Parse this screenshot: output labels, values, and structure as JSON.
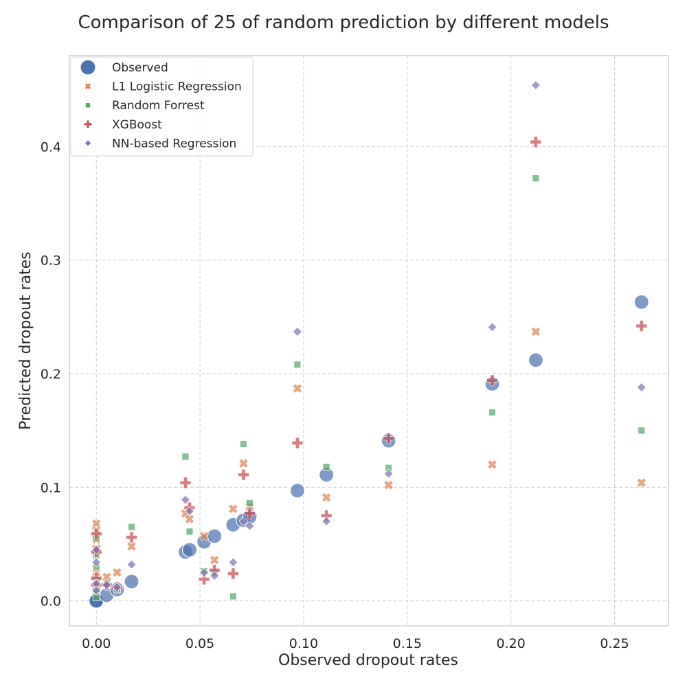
{
  "chart_data": {
    "type": "scatter",
    "title": "Comparison of 25 of random prediction by different models",
    "xlabel": "Observed dropout rates",
    "ylabel": "Predicted dropout rates",
    "xlim": [
      -0.013,
      0.276
    ],
    "ylim": [
      -0.022,
      0.48
    ],
    "xticks": [
      0.0,
      0.05,
      0.1,
      0.15,
      0.2,
      0.25
    ],
    "xtick_labels": [
      "0.00",
      "0.05",
      "0.10",
      "0.15",
      "0.20",
      "0.25"
    ],
    "yticks": [
      0.0,
      0.1,
      0.2,
      0.3,
      0.4
    ],
    "ytick_labels": [
      "0.0",
      "0.1",
      "0.2",
      "0.3",
      "0.4"
    ],
    "grid": true,
    "legend_position": "top-left",
    "series": [
      {
        "name": "Observed",
        "marker": "circle",
        "color": "#4c72b0",
        "points": [
          [
            0.0,
            0.0
          ],
          [
            0.0,
            0.0
          ],
          [
            0.0,
            0.0
          ],
          [
            0.0,
            0.0
          ],
          [
            0.0,
            0.0
          ],
          [
            0.0,
            0.0
          ],
          [
            0.0,
            0.0
          ],
          [
            0.0,
            0.0
          ],
          [
            0.005,
            0.005
          ],
          [
            0.01,
            0.01
          ],
          [
            0.017,
            0.017
          ],
          [
            0.043,
            0.043
          ],
          [
            0.045,
            0.045
          ],
          [
            0.052,
            0.052
          ],
          [
            0.057,
            0.057
          ],
          [
            0.066,
            0.067
          ],
          [
            0.071,
            0.071
          ],
          [
            0.074,
            0.074
          ],
          [
            0.097,
            0.097
          ],
          [
            0.111,
            0.111
          ],
          [
            0.141,
            0.141
          ],
          [
            0.191,
            0.191
          ],
          [
            0.212,
            0.212
          ],
          [
            0.263,
            0.263
          ]
        ]
      },
      {
        "name": "L1 Logistic Regression",
        "marker": "x",
        "color": "#dd8452",
        "points": [
          [
            0.0,
            0.068
          ],
          [
            0.0,
            0.062
          ],
          [
            0.0,
            0.054
          ],
          [
            0.0,
            0.046
          ],
          [
            0.0,
            0.025
          ],
          [
            0.0,
            0.018
          ],
          [
            0.0,
            0.013
          ],
          [
            0.0,
            0.008
          ],
          [
            0.005,
            0.021
          ],
          [
            0.01,
            0.025
          ],
          [
            0.017,
            0.048
          ],
          [
            0.043,
            0.077
          ],
          [
            0.045,
            0.072
          ],
          [
            0.052,
            0.057
          ],
          [
            0.057,
            0.036
          ],
          [
            0.066,
            0.081
          ],
          [
            0.071,
            0.121
          ],
          [
            0.074,
            0.083
          ],
          [
            0.097,
            0.187
          ],
          [
            0.111,
            0.091
          ],
          [
            0.141,
            0.102
          ],
          [
            0.191,
            0.12
          ],
          [
            0.212,
            0.237
          ],
          [
            0.263,
            0.104
          ]
        ]
      },
      {
        "name": "Random Forrest",
        "marker": "square",
        "color": "#55a868",
        "points": [
          [
            0.0,
            0.055
          ],
          [
            0.0,
            0.04
          ],
          [
            0.0,
            0.03
          ],
          [
            0.0,
            0.018
          ],
          [
            0.0,
            0.01
          ],
          [
            0.0,
            0.003
          ],
          [
            0.005,
            0.015
          ],
          [
            0.01,
            0.01
          ],
          [
            0.017,
            0.065
          ],
          [
            0.043,
            0.127
          ],
          [
            0.045,
            0.061
          ],
          [
            0.052,
            0.026
          ],
          [
            0.057,
            0.025
          ],
          [
            0.066,
            0.004
          ],
          [
            0.071,
            0.138
          ],
          [
            0.074,
            0.086
          ],
          [
            0.097,
            0.208
          ],
          [
            0.111,
            0.118
          ],
          [
            0.141,
            0.117
          ],
          [
            0.191,
            0.166
          ],
          [
            0.212,
            0.372
          ],
          [
            0.263,
            0.15
          ]
        ]
      },
      {
        "name": "XGBoost",
        "marker": "plus",
        "color": "#c44e52",
        "points": [
          [
            0.0,
            0.059
          ],
          [
            0.0,
            0.043
          ],
          [
            0.0,
            0.02
          ],
          [
            0.0,
            0.014
          ],
          [
            0.005,
            0.014
          ],
          [
            0.01,
            0.012
          ],
          [
            0.017,
            0.056
          ],
          [
            0.043,
            0.104
          ],
          [
            0.045,
            0.082
          ],
          [
            0.052,
            0.019
          ],
          [
            0.057,
            0.027
          ],
          [
            0.066,
            0.024
          ],
          [
            0.071,
            0.111
          ],
          [
            0.074,
            0.077
          ],
          [
            0.097,
            0.139
          ],
          [
            0.111,
            0.075
          ],
          [
            0.141,
            0.143
          ],
          [
            0.191,
            0.194
          ],
          [
            0.212,
            0.404
          ],
          [
            0.263,
            0.242
          ]
        ]
      },
      {
        "name": "NN-based Regression",
        "marker": "diamond",
        "color": "#8172b3",
        "points": [
          [
            0.0,
            0.045
          ],
          [
            0.0,
            0.034
          ],
          [
            0.0,
            0.015
          ],
          [
            0.0,
            0.009
          ],
          [
            0.005,
            0.014
          ],
          [
            0.01,
            0.012
          ],
          [
            0.017,
            0.032
          ],
          [
            0.043,
            0.089
          ],
          [
            0.045,
            0.079
          ],
          [
            0.052,
            0.025
          ],
          [
            0.057,
            0.022
          ],
          [
            0.066,
            0.034
          ],
          [
            0.071,
            0.07
          ],
          [
            0.074,
            0.066
          ],
          [
            0.097,
            0.237
          ],
          [
            0.111,
            0.07
          ],
          [
            0.141,
            0.112
          ],
          [
            0.191,
            0.241
          ],
          [
            0.212,
            0.454
          ],
          [
            0.263,
            0.188
          ]
        ]
      }
    ]
  }
}
